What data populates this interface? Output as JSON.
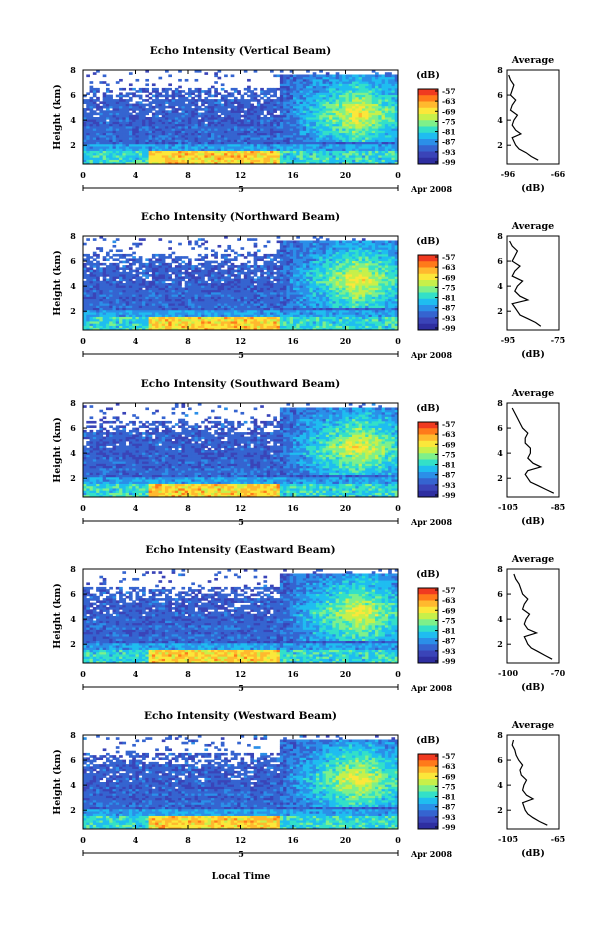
{
  "colorbar": {
    "unit": "(dB)",
    "labels": [
      "-57",
      "-63",
      "-69",
      "-75",
      "-81",
      "-87",
      "-93",
      "-99"
    ],
    "colors": [
      "#f03a20",
      "#ff7a1a",
      "#ffb92e",
      "#fbe73a",
      "#c7f04a",
      "#7ef08a",
      "#33e0c8",
      "#1fbdf0",
      "#2b8fe8",
      "#3564d0",
      "#3a44b8",
      "#2e2ea0"
    ]
  },
  "x_axis": {
    "ticks": [
      "0",
      "4",
      "8",
      "12",
      "16",
      "20",
      "0"
    ],
    "date_label": "Apr 2008",
    "day_marker": "5",
    "xlabel": "Local Time"
  },
  "panels_meta": {
    "ylabel": "Height (km)",
    "yticks": [
      "2",
      "4",
      "6",
      "8"
    ],
    "avg_title": "Average",
    "avg_xlabel": "(dB)"
  },
  "chart_data": [
    {
      "type": "heatmap",
      "title": "Echo Intensity (Vertical Beam)",
      "xlabel": "Local Time",
      "ylabel": "Height (km)",
      "xlim": [
        0,
        24
      ],
      "ylim": [
        0.5,
        8
      ],
      "zlabel": "(dB)",
      "zlim": [
        -99,
        -57
      ],
      "average": {
        "xlim": [
          -96,
          -66
        ],
        "xticks": [
          "-96",
          "-66"
        ],
        "x": [
          -78,
          -82,
          -85,
          -89,
          -91,
          -92,
          -93,
          -88,
          -91,
          -93,
          -92,
          -90,
          -94,
          -93,
          -91,
          -94,
          -93,
          -92,
          -94,
          -95
        ],
        "y": [
          0.8,
          1.1,
          1.4,
          1.7,
          2.0,
          2.3,
          2.6,
          2.9,
          3.2,
          3.6,
          4.0,
          4.4,
          4.8,
          5.2,
          5.6,
          6.0,
          6.4,
          6.8,
          7.2,
          7.6
        ]
      }
    },
    {
      "type": "heatmap",
      "title": "Echo Intensity (Northward Beam)",
      "xlabel": "Local Time",
      "ylabel": "Height (km)",
      "xlim": [
        0,
        24
      ],
      "ylim": [
        0.5,
        8
      ],
      "zlabel": "(dB)",
      "zlim": [
        -99,
        -57
      ],
      "average": {
        "xlim": [
          -95,
          -75
        ],
        "xticks": [
          "-95",
          "-75"
        ],
        "x": [
          -82,
          -84,
          -87,
          -90,
          -91,
          -92,
          -93,
          -87,
          -90,
          -92,
          -91,
          -89,
          -93,
          -92,
          -90,
          -93,
          -92,
          -91,
          -93,
          -94
        ],
        "y": [
          0.8,
          1.1,
          1.4,
          1.7,
          2.0,
          2.3,
          2.6,
          2.9,
          3.2,
          3.6,
          4.0,
          4.4,
          4.8,
          5.2,
          5.6,
          6.0,
          6.4,
          6.8,
          7.2,
          7.6
        ]
      }
    },
    {
      "type": "heatmap",
      "title": "Echo Intensity (Southward Beam)",
      "xlabel": "Local Time",
      "ylabel": "Height (km)",
      "xlim": [
        0,
        24
      ],
      "ylim": [
        0.5,
        8
      ],
      "zlabel": "(dB)",
      "zlim": [
        -99,
        -57
      ],
      "average": {
        "xlim": [
          -105,
          -85
        ],
        "xticks": [
          "-105",
          "-85"
        ],
        "x": [
          -87,
          -90,
          -93,
          -96,
          -97,
          -98,
          -97,
          -92,
          -95,
          -97,
          -96,
          -96,
          -98,
          -98,
          -97,
          -99,
          -100,
          -101,
          -102,
          -103
        ],
        "y": [
          0.8,
          1.1,
          1.4,
          1.7,
          2.0,
          2.3,
          2.6,
          2.9,
          3.2,
          3.6,
          4.0,
          4.4,
          4.8,
          5.2,
          5.6,
          6.0,
          6.4,
          6.8,
          7.2,
          7.6
        ]
      }
    },
    {
      "type": "heatmap",
      "title": "Echo Intensity (Eastward Beam)",
      "xlabel": "Local Time",
      "ylabel": "Height (km)",
      "xlim": [
        0,
        24
      ],
      "ylim": [
        0.5,
        8
      ],
      "zlabel": "(dB)",
      "zlim": [
        -99,
        -57
      ],
      "average": {
        "xlim": [
          -100,
          -70
        ],
        "xticks": [
          "-100",
          "-70"
        ],
        "x": [
          -74,
          -78,
          -82,
          -86,
          -88,
          -89,
          -90,
          -83,
          -88,
          -90,
          -89,
          -87,
          -91,
          -90,
          -88,
          -91,
          -92,
          -93,
          -95,
          -96
        ],
        "y": [
          0.8,
          1.1,
          1.4,
          1.7,
          2.0,
          2.3,
          2.6,
          2.9,
          3.2,
          3.6,
          4.0,
          4.4,
          4.8,
          5.2,
          5.6,
          6.0,
          6.4,
          6.8,
          7.2,
          7.6
        ]
      }
    },
    {
      "type": "heatmap",
      "title": "Echo Intensity (Westward Beam)",
      "xlabel": "Local Time",
      "ylabel": "Height (km)",
      "xlim": [
        0,
        24
      ],
      "ylim": [
        0.5,
        8
      ],
      "zlabel": "(dB)",
      "zlim": [
        -99,
        -57
      ],
      "average": {
        "xlim": [
          -105,
          -65
        ],
        "xticks": [
          "-105",
          "-65"
        ],
        "x": [
          -74,
          -80,
          -85,
          -89,
          -91,
          -92,
          -93,
          -85,
          -90,
          -93,
          -92,
          -90,
          -94,
          -95,
          -93,
          -96,
          -98,
          -99,
          -101,
          -100
        ],
        "y": [
          0.8,
          1.1,
          1.4,
          1.7,
          2.0,
          2.3,
          2.6,
          2.9,
          3.2,
          3.6,
          4.0,
          4.4,
          4.8,
          5.2,
          5.6,
          6.0,
          6.4,
          6.8,
          7.2,
          7.6
        ]
      }
    }
  ]
}
